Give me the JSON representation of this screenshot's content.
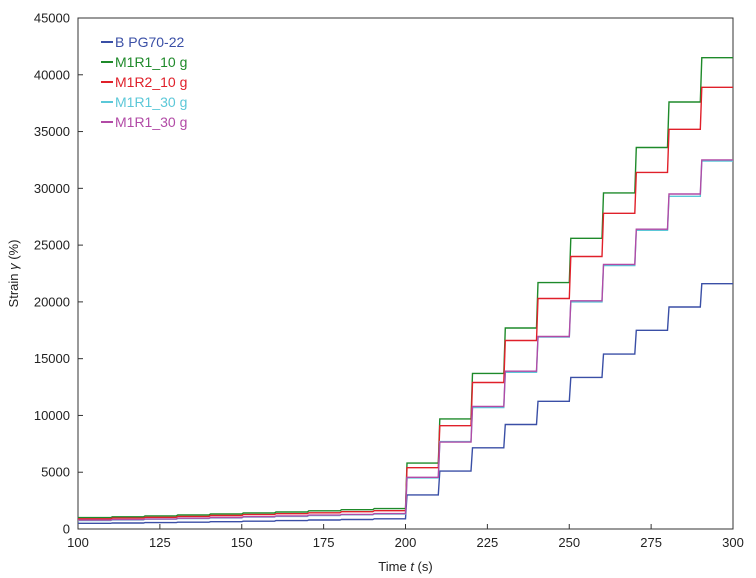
{
  "chart_data": {
    "type": "line",
    "title": "",
    "xlabel_text": "Time ",
    "xlabel_var": "t",
    "xlabel_unit": " (s)",
    "ylabel_text": "Strain ",
    "ylabel_var": "γ",
    "ylabel_unit": " (%)",
    "xlim": [
      100,
      300
    ],
    "ylim": [
      0,
      45000
    ],
    "xticks": [
      100,
      125,
      150,
      175,
      200,
      225,
      250,
      275,
      300
    ],
    "yticks": [
      0,
      5000,
      10000,
      15000,
      20000,
      25000,
      30000,
      35000,
      40000,
      45000
    ],
    "grid": false,
    "legend_position": "top-left",
    "step_times": [
      100,
      110,
      120,
      130,
      140,
      150,
      160,
      170,
      180,
      190,
      200,
      210,
      220,
      230,
      240,
      250,
      260,
      270,
      280,
      290,
      300
    ],
    "series": [
      {
        "name": "B PG70-22",
        "color": "#3a4fa6",
        "values": [
          500,
          530,
          560,
          600,
          640,
          690,
          740,
          790,
          840,
          900,
          3000,
          5100,
          7150,
          9200,
          11250,
          13350,
          15400,
          17500,
          19550,
          21600
        ]
      },
      {
        "name": "M1R1_10 g",
        "color": "#1e8a2a",
        "values": [
          1000,
          1070,
          1150,
          1230,
          1320,
          1410,
          1500,
          1600,
          1700,
          1800,
          5800,
          9700,
          13700,
          17700,
          21700,
          25600,
          29600,
          33600,
          37600,
          41500
        ]
      },
      {
        "name": "M1R2_10 g",
        "color": "#e0202a",
        "values": [
          900,
          960,
          1030,
          1110,
          1190,
          1270,
          1350,
          1430,
          1520,
          1610,
          5400,
          9100,
          12900,
          16600,
          20300,
          24000,
          27800,
          31400,
          35200,
          38900
        ]
      },
      {
        "name": "M1R1_30 g",
        "color": "#5bc8d8",
        "values": [
          750,
          800,
          860,
          920,
          980,
          1050,
          1110,
          1180,
          1250,
          1320,
          4500,
          7700,
          10700,
          13800,
          16900,
          20000,
          23200,
          26300,
          29300,
          32400
        ]
      },
      {
        "name": "M1R1_30 g",
        "color": "#b24aa6",
        "values": [
          780,
          830,
          890,
          950,
          1010,
          1080,
          1150,
          1220,
          1290,
          1360,
          4550,
          7650,
          10800,
          13900,
          16950,
          20100,
          23300,
          26400,
          29500,
          32500
        ]
      }
    ]
  }
}
